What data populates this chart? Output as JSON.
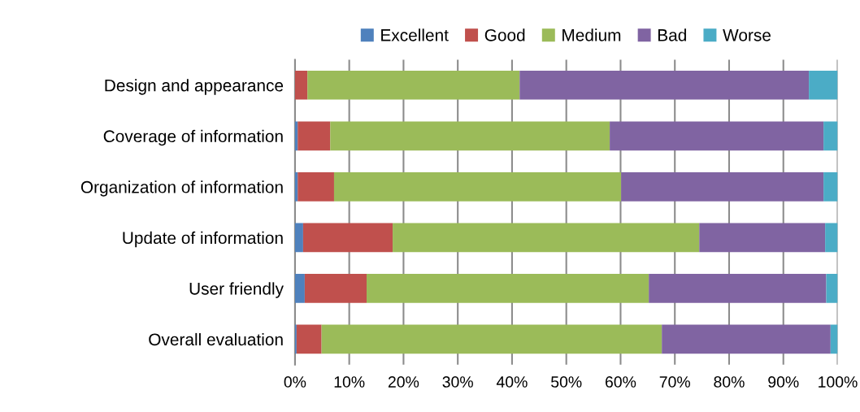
{
  "chart_data": {
    "type": "bar",
    "orientation": "horizontal",
    "stacked": true,
    "categories": [
      "Design and appearance",
      "Coverage of information",
      "Organization of information",
      "Update of information",
      "User friendly",
      "Overall evaluation"
    ],
    "series": [
      {
        "name": "Excellent",
        "color": "#4f81bd",
        "values": [
          0,
          0.5,
          0.5,
          1.5,
          1.8,
          0.3
        ]
      },
      {
        "name": "Good",
        "color": "#c0504d",
        "values": [
          2.3,
          6.0,
          6.7,
          16.5,
          11.4,
          4.6
        ]
      },
      {
        "name": "Medium",
        "color": "#9bbb59",
        "values": [
          39.1,
          51.5,
          52.9,
          56.5,
          52.0,
          62.7
        ]
      },
      {
        "name": "Bad",
        "color": "#8064a2",
        "values": [
          53.3,
          39.4,
          37.3,
          23.2,
          32.7,
          31.1
        ]
      },
      {
        "name": "Worse",
        "color": "#4bacc6",
        "values": [
          5.3,
          2.6,
          2.6,
          2.3,
          2.1,
          1.3
        ]
      }
    ],
    "xlim": [
      0,
      100
    ],
    "xticks": [
      {
        "value": 0,
        "label": "0%"
      },
      {
        "value": 10,
        "label": "10%"
      },
      {
        "value": 20,
        "label": "20%"
      },
      {
        "value": 30,
        "label": "30%"
      },
      {
        "value": 40,
        "label": "40%"
      },
      {
        "value": 50,
        "label": "50%"
      },
      {
        "value": 60,
        "label": "60%"
      },
      {
        "value": 70,
        "label": "70%"
      },
      {
        "value": 80,
        "label": "80%"
      },
      {
        "value": 90,
        "label": "90%"
      },
      {
        "value": 100,
        "label": "100%"
      }
    ],
    "grid": "x",
    "legend": "top"
  }
}
